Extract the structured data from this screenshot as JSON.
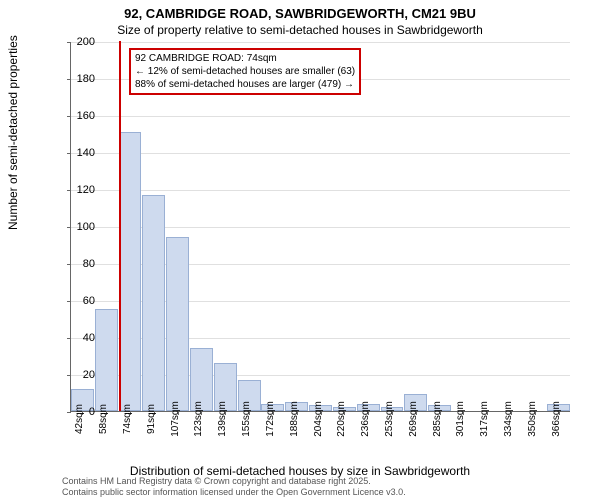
{
  "title_main": "92, CAMBRIDGE ROAD, SAWBRIDGEWORTH, CM21 9BU",
  "title_sub": "Size of property relative to semi-detached houses in Sawbridgeworth",
  "ylabel": "Number of semi-detached properties",
  "xlabel": "Distribution of semi-detached houses by size in Sawbridgeworth",
  "chart": {
    "type": "histogram",
    "ylim": [
      0,
      200
    ],
    "ytick_step": 20,
    "yticks": [
      0,
      20,
      40,
      60,
      80,
      100,
      120,
      140,
      160,
      180,
      200
    ],
    "xticks": [
      "42sqm",
      "58sqm",
      "74sqm",
      "91sqm",
      "107sqm",
      "123sqm",
      "139sqm",
      "155sqm",
      "172sqm",
      "188sqm",
      "204sqm",
      "220sqm",
      "236sqm",
      "253sqm",
      "269sqm",
      "285sqm",
      "301sqm",
      "317sqm",
      "334sqm",
      "350sqm",
      "366sqm"
    ],
    "bar_values": [
      12,
      55,
      151,
      117,
      94,
      34,
      26,
      17,
      4,
      5,
      3,
      2,
      4,
      2,
      9,
      3,
      0,
      0,
      0,
      0,
      4
    ],
    "bar_color": "#cedaee",
    "bar_border_color": "#9ab0d4",
    "grid_color": "#e0e0e0",
    "background_color": "#ffffff",
    "marker_position_index": 2,
    "marker_color": "#cc0000"
  },
  "annotation": {
    "line1": "92 CAMBRIDGE ROAD: 74sqm",
    "line2": "← 12% of semi-detached houses are smaller (63)",
    "line3": "88% of semi-detached houses are larger (479) →",
    "border_color": "#cc0000"
  },
  "footnote": {
    "line1": "Contains HM Land Registry data © Crown copyright and database right 2025.",
    "line2": "Contains public sector information licensed under the Open Government Licence v3.0."
  }
}
